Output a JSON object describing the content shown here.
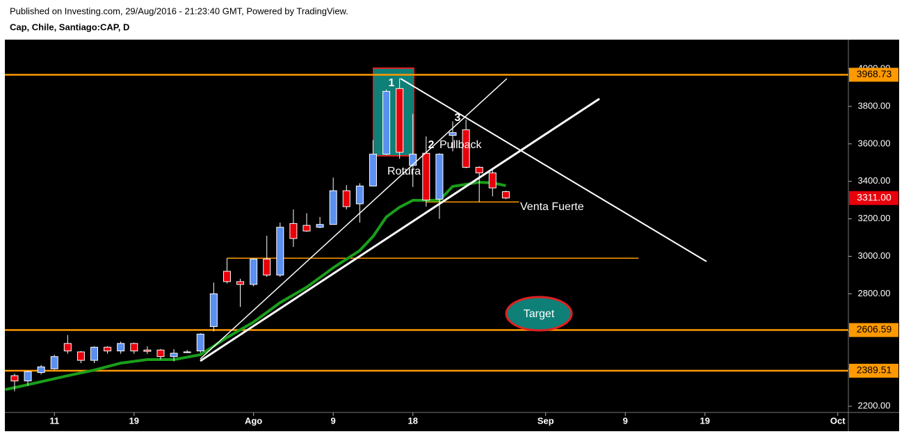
{
  "header": {
    "published": "Published on Investing.com, 29/Aug/2016 - 21:23:40 GMT, Powered by TradingView.",
    "symbol": "Cap, Chile, Santiago:CAP, D"
  },
  "chart_data": {
    "type": "candlestick",
    "x": [
      0,
      1,
      2,
      3,
      4,
      5,
      6,
      7,
      8,
      9,
      10,
      11,
      12,
      13,
      14,
      15,
      16,
      17,
      18,
      19,
      20,
      21,
      22,
      23,
      24,
      25,
      26,
      27,
      28,
      29,
      30,
      31,
      32,
      33,
      34,
      35,
      36,
      37
    ],
    "open": [
      2363,
      2335,
      2380,
      2400,
      2535,
      2490,
      2445,
      2515,
      2495,
      2535,
      2500,
      2500,
      2465,
      2490,
      2495,
      2625,
      2920,
      2865,
      2850,
      2985,
      2900,
      3175,
      3165,
      3155,
      3170,
      3350,
      3280,
      3375,
      3545,
      3895,
      3485,
      3550,
      3305,
      3645,
      3675,
      3475,
      3445,
      3345
    ],
    "high": [
      2374,
      2390,
      2420,
      2475,
      2580,
      2495,
      2520,
      2520,
      2545,
      2540,
      2520,
      2505,
      2505,
      2500,
      2590,
      2860,
      2990,
      2880,
      2990,
      3110,
      3180,
      3250,
      3230,
      3210,
      3420,
      3380,
      3390,
      3620,
      3890,
      3950,
      3760,
      3640,
      3550,
      3720,
      3730,
      3480,
      3470,
      3350
    ],
    "low": [
      2280,
      2310,
      2370,
      2395,
      2480,
      2430,
      2430,
      2480,
      2480,
      2480,
      2480,
      2450,
      2440,
      2485,
      2485,
      2600,
      2855,
      2730,
      2840,
      2890,
      2890,
      3050,
      3130,
      3150,
      3170,
      3250,
      3180,
      3375,
      3540,
      3520,
      3370,
      3265,
      3200,
      3560,
      3470,
      3290,
      3320,
      3305
    ],
    "close": [
      2335,
      2385,
      2410,
      2465,
      2495,
      2445,
      2515,
      2495,
      2535,
      2495,
      2493,
      2465,
      2483,
      2487,
      2585,
      2800,
      2865,
      2850,
      2985,
      2900,
      3155,
      3095,
      3135,
      3170,
      3350,
      3265,
      3375,
      3545,
      3880,
      3555,
      3545,
      3300,
      3545,
      3660,
      3475,
      3445,
      3365,
      3311
    ],
    "up_color": "#5b8ff0",
    "down_color": "#e8000b",
    "xlim": [
      -0.73,
      62.8
    ],
    "xticks": [
      {
        "value": 3,
        "label": "11"
      },
      {
        "value": 9,
        "label": "19"
      },
      {
        "value": 18,
        "label": "Ago"
      },
      {
        "value": 24,
        "label": "9"
      },
      {
        "value": 30,
        "label": "18"
      },
      {
        "value": 40,
        "label": "Sep"
      },
      {
        "value": 46,
        "label": "9"
      },
      {
        "value": 52,
        "label": "19"
      },
      {
        "value": 62,
        "label": "Oct"
      }
    ],
    "ylim": [
      2167,
      4156
    ],
    "yticks": [
      {
        "value": 2200,
        "label": "2200.00"
      },
      {
        "value": 2400,
        "label": "2400.00"
      },
      {
        "value": 2600,
        "label": "2600.00"
      },
      {
        "value": 2800,
        "label": "2800.00"
      },
      {
        "value": 3000,
        "label": "3000.00"
      },
      {
        "value": 3200,
        "label": "3200.00"
      },
      {
        "value": 3400,
        "label": "3400.00"
      },
      {
        "value": 3600,
        "label": "3600.00"
      },
      {
        "value": 3800,
        "label": "3800.00"
      },
      {
        "value": 4000,
        "label": "4000.00"
      }
    ],
    "moving_average": {
      "color": "#1a9e1a",
      "x": [
        -0.7,
        1,
        4,
        6,
        8,
        10,
        12,
        14,
        16,
        18,
        20,
        22,
        24,
        26,
        27,
        28,
        29,
        30,
        32,
        33,
        35,
        36,
        37
      ],
      "values": [
        2289,
        2315,
        2363,
        2393,
        2430,
        2449,
        2449,
        2475,
        2567,
        2649,
        2753,
        2835,
        2939,
        3031,
        3106,
        3210,
        3262,
        3299,
        3299,
        3373,
        3395,
        3392,
        3377
      ]
    },
    "levels": [
      {
        "value": 3968.73,
        "label": "3968.73"
      },
      {
        "value": 2606.59,
        "label": "2606.59"
      },
      {
        "value": 2389.51,
        "label": "2389.51"
      }
    ],
    "level_color": "#ff9900",
    "last_price_label": "3311.00",
    "segments": [
      {
        "value": 2990,
        "from": 16,
        "to": 47
      },
      {
        "value": 3290,
        "from": 31,
        "to": 38
      }
    ],
    "annotations": [
      "1",
      "2",
      "3",
      "Pullback",
      "Rotura",
      "Venta Fuerte",
      "Target"
    ]
  }
}
